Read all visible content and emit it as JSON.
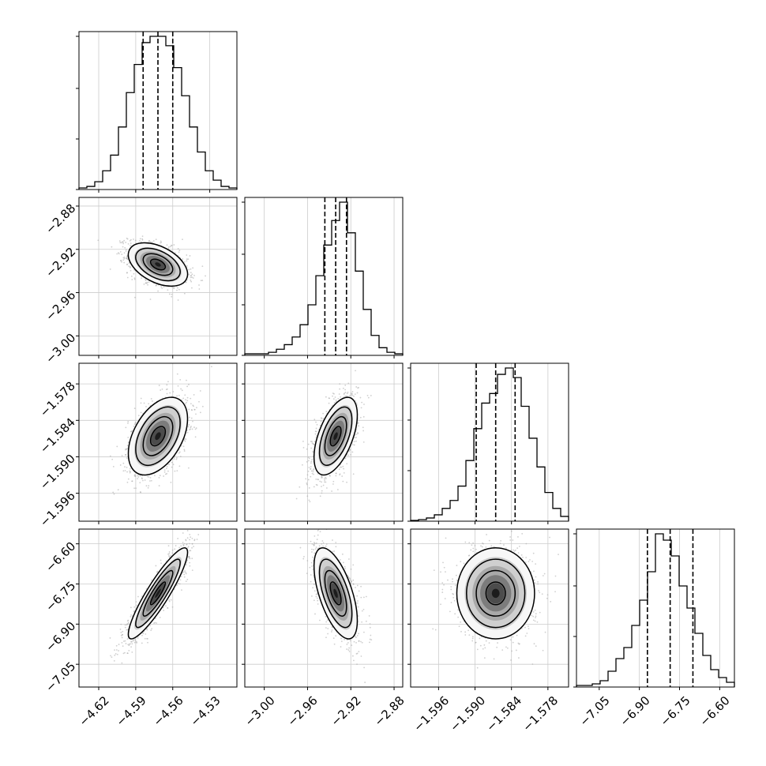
{
  "chart_data": {
    "type": "corner",
    "n_params": 4,
    "params": [
      {
        "index": 0,
        "median": -4.572,
        "q16": -4.584,
        "q84": -4.56,
        "range": [
          -4.636,
          -4.508
        ],
        "ticks": [
          -4.62,
          -4.59,
          -4.56,
          -4.53
        ],
        "tick_labels": [
          "−4.62",
          "−4.59",
          "−4.56",
          "−4.53"
        ]
      },
      {
        "index": 1,
        "median": -2.934,
        "q16": -2.944,
        "q84": -2.924,
        "range": [
          -3.018,
          -2.872
        ],
        "ticks": [
          -3.0,
          -2.96,
          -2.92,
          -2.88
        ],
        "tick_labels": [
          "−3.00",
          "−2.96",
          "−2.92",
          "−2.88"
        ]
      },
      {
        "index": 2,
        "median": -1.5866,
        "q16": -1.5898,
        "q84": -1.5834,
        "range": [
          -1.6006,
          -1.5746
        ],
        "ticks": [
          -1.596,
          -1.59,
          -1.584,
          -1.578
        ],
        "tick_labels": [
          "−1.596",
          "−1.590",
          "−1.584",
          "−1.578"
        ]
      },
      {
        "index": 3,
        "median": -6.785,
        "q16": -6.87,
        "q84": -6.7,
        "range": [
          -7.135,
          -6.545
        ],
        "ticks": [
          -7.05,
          -6.9,
          -6.75,
          -6.6
        ],
        "tick_labels": [
          "−7.05",
          "−6.90",
          "−6.75",
          "−6.60"
        ]
      }
    ],
    "histograms": [
      {
        "param": 0,
        "counts": [
          1,
          2,
          5,
          12,
          22,
          40,
          62,
          80,
          94,
          98,
          98,
          92,
          78,
          60,
          40,
          24,
          12,
          6,
          2,
          1
        ]
      },
      {
        "param": 1,
        "counts": [
          1,
          1,
          1,
          2,
          4,
          7,
          12,
          20,
          33,
          52,
          72,
          88,
          100,
          80,
          55,
          30,
          13,
          5,
          2,
          1
        ]
      },
      {
        "param": 2,
        "counts": [
          0.5,
          1,
          2,
          4,
          8,
          13,
          22,
          38,
          58,
          74,
          80,
          92,
          96,
          90,
          72,
          52,
          34,
          18,
          8,
          3
        ]
      },
      {
        "param": 3,
        "counts": [
          1,
          1,
          2,
          4,
          10,
          18,
          25,
          39,
          55,
          73,
          97,
          93,
          83,
          64,
          50,
          34,
          20,
          11,
          6,
          3
        ]
      }
    ],
    "correlations": [
      {
        "x": 0,
        "y": 1,
        "rho": -0.45
      },
      {
        "x": 0,
        "y": 2,
        "rho": 0.45
      },
      {
        "x": 1,
        "y": 2,
        "rho": 0.55
      },
      {
        "x": 0,
        "y": 3,
        "rho": 0.9
      },
      {
        "x": 1,
        "y": 3,
        "rho": -0.6
      },
      {
        "x": 2,
        "y": 3,
        "rho": 0.0
      }
    ],
    "contour_levels_sigma": [
      0.5,
      1.0,
      1.5,
      2.0
    ],
    "grid": true,
    "quantile_lines": "dashed",
    "colors": {
      "contour": "#000000",
      "points": "#a8a8a8",
      "grid": "#cccccc"
    }
  }
}
